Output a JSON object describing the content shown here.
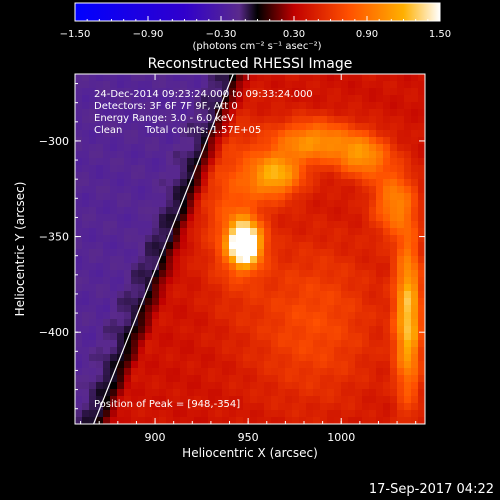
{
  "chart_data": {
    "type": "heatmap",
    "title": "Reconstructed RHESSI Image",
    "xlabel": "Heliocentric X (arcsec)",
    "ylabel": "Heliocentric Y (arcsec)",
    "xlim": [
      857,
      1045
    ],
    "ylim": [
      -448,
      -265
    ],
    "x_ticks": [
      {
        "value": 900,
        "label": "900"
      },
      {
        "value": 950,
        "label": "950"
      },
      {
        "value": 1000,
        "label": "1000"
      }
    ],
    "y_ticks": [
      {
        "value": -300,
        "label": "−300"
      },
      {
        "value": -350,
        "label": "−350"
      },
      {
        "value": -400,
        "label": "−400"
      }
    ],
    "colorbar": {
      "min": -1.5,
      "max": 1.5,
      "ticks": [
        {
          "value": -1.5,
          "label": "−1.50"
        },
        {
          "value": -0.9,
          "label": "−0.90"
        },
        {
          "value": -0.3,
          "label": "−0.30"
        },
        {
          "value": 0.3,
          "label": "0.30"
        },
        {
          "value": 0.9,
          "label": "0.90"
        },
        {
          "value": 1.5,
          "label": "1.50"
        }
      ],
      "unit_label": "(photons cm⁻² s⁻¹ asec⁻²)"
    },
    "annotations": [
      "24-Dec-2014 09:23:24.000 to 09:33:24.000",
      "Detectors: 3F 6F 7F 9F, Att 0",
      "Energy Range: 3.0 - 6.0 keV",
      "Clean",
      "Total counts: 1.57E+05"
    ],
    "peak_label": "Position of Peak = [948,-354]",
    "peak": {
      "x": 948,
      "y": -354
    },
    "limb_line": {
      "points": [
        [
          867,
          -448
        ],
        [
          942,
          -265
        ]
      ],
      "color": "#ffffff"
    },
    "sources": [
      {
        "x": 948,
        "y": -354,
        "amp": 1.4,
        "sx": 6,
        "sy": 8
      },
      {
        "x": 942,
        "y": -335,
        "amp": 0.35,
        "sx": 12,
        "sy": 30
      },
      {
        "x": 965,
        "y": -318,
        "amp": 0.75,
        "sx": 10,
        "sy": 8
      },
      {
        "x": 985,
        "y": -300,
        "amp": 0.65,
        "sx": 16,
        "sy": 8
      },
      {
        "x": 1012,
        "y": -308,
        "amp": 0.6,
        "sx": 10,
        "sy": 8
      },
      {
        "x": 1028,
        "y": -332,
        "amp": 0.55,
        "sx": 8,
        "sy": 12
      },
      {
        "x": 1036,
        "y": -392,
        "amp": 0.85,
        "sx": 5,
        "sy": 30
      },
      {
        "x": 985,
        "y": -395,
        "amp": 0.3,
        "sx": 25,
        "sy": 30
      }
    ]
  },
  "footer_timestamp": "17-Sep-2017 04:22"
}
